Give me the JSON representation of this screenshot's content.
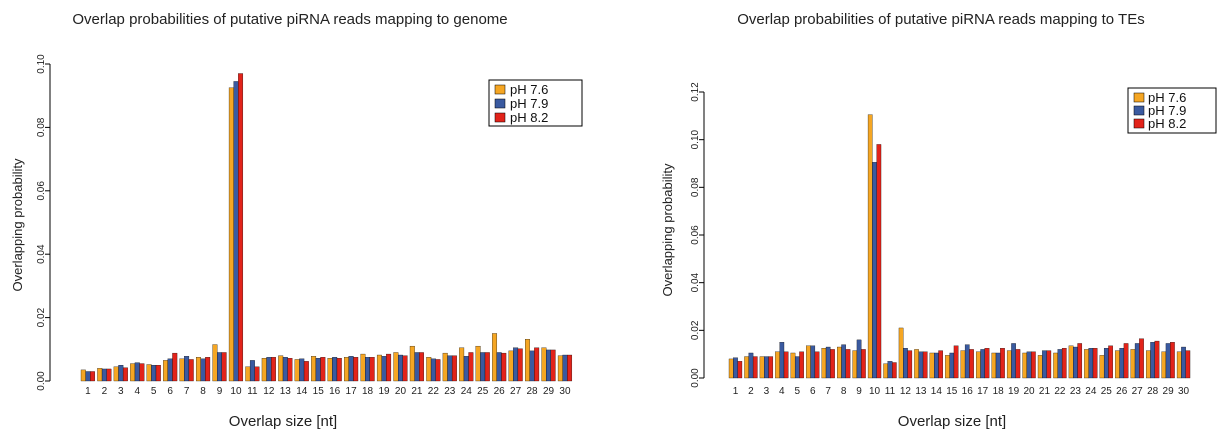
{
  "chart_data": [
    {
      "type": "bar",
      "title": "Overlap probabilities of putative piRNA reads mapping to genome",
      "xlabel": "Overlap size [nt]",
      "ylabel": "Overlapping probability",
      "ylim": [
        0,
        0.1
      ],
      "yticks": [
        "0.00",
        "0.02",
        "0.04",
        "0.06",
        "0.08",
        "0.10"
      ],
      "grid": false,
      "legend_position": "top-right",
      "categories": [
        "1",
        "2",
        "3",
        "4",
        "5",
        "6",
        "7",
        "8",
        "9",
        "10",
        "11",
        "12",
        "13",
        "14",
        "15",
        "16",
        "17",
        "18",
        "19",
        "20",
        "21",
        "22",
        "23",
        "24",
        "25",
        "26",
        "27",
        "28",
        "29",
        "30"
      ],
      "series": [
        {
          "name": "pH 7.6",
          "color": "#f5a623",
          "values": [
            0.0035,
            0.004,
            0.0045,
            0.0055,
            0.0052,
            0.0065,
            0.007,
            0.0075,
            0.0115,
            0.0925,
            0.0045,
            0.0072,
            0.008,
            0.0068,
            0.0078,
            0.0072,
            0.0075,
            0.0085,
            0.0082,
            0.009,
            0.011,
            0.0075,
            0.0088,
            0.0105,
            0.011,
            0.015,
            0.0095,
            0.0132,
            0.0105,
            0.008
          ]
        },
        {
          "name": "pH 7.9",
          "color": "#3a5aa0",
          "values": [
            0.003,
            0.0038,
            0.005,
            0.0058,
            0.005,
            0.007,
            0.0078,
            0.007,
            0.009,
            0.0945,
            0.0065,
            0.0075,
            0.0075,
            0.007,
            0.0072,
            0.0075,
            0.0078,
            0.0075,
            0.0078,
            0.0082,
            0.009,
            0.007,
            0.008,
            0.0078,
            0.009,
            0.009,
            0.0105,
            0.0095,
            0.0098,
            0.0082
          ]
        },
        {
          "name": "pH 8.2",
          "color": "#e2231a",
          "values": [
            0.003,
            0.0038,
            0.0042,
            0.0055,
            0.005,
            0.0088,
            0.0068,
            0.0075,
            0.009,
            0.097,
            0.0045,
            0.0075,
            0.0072,
            0.0062,
            0.0075,
            0.0072,
            0.0075,
            0.0075,
            0.0085,
            0.008,
            0.009,
            0.0068,
            0.008,
            0.009,
            0.009,
            0.0088,
            0.0102,
            0.0105,
            0.0098,
            0.0082
          ]
        }
      ]
    },
    {
      "type": "bar",
      "title": "Overlap probabilities of putative piRNA reads mapping to TEs",
      "xlabel": "Overlap size [nt]",
      "ylabel": "Overlapping probability",
      "ylim": [
        0,
        0.12
      ],
      "yticks": [
        "0.00",
        "0.02",
        "0.04",
        "0.06",
        "0.08",
        "0.10",
        "0.12"
      ],
      "grid": false,
      "legend_position": "top-right",
      "categories": [
        "1",
        "2",
        "3",
        "4",
        "5",
        "6",
        "7",
        "8",
        "9",
        "10",
        "11",
        "12",
        "13",
        "14",
        "15",
        "16",
        "17",
        "18",
        "19",
        "20",
        "21",
        "22",
        "23",
        "24",
        "25",
        "26",
        "27",
        "28",
        "29",
        "30"
      ],
      "series": [
        {
          "name": "pH 7.6",
          "color": "#f5a623",
          "values": [
            0.008,
            0.009,
            0.009,
            0.011,
            0.0105,
            0.0135,
            0.0125,
            0.013,
            0.0115,
            0.1105,
            0.006,
            0.021,
            0.012,
            0.0105,
            0.0095,
            0.0115,
            0.011,
            0.0105,
            0.0115,
            0.0105,
            0.0095,
            0.0105,
            0.0135,
            0.012,
            0.0095,
            0.0115,
            0.012,
            0.0115,
            0.011,
            0.011
          ]
        },
        {
          "name": "pH 7.9",
          "color": "#3a5aa0",
          "values": [
            0.0085,
            0.0105,
            0.009,
            0.015,
            0.009,
            0.0135,
            0.013,
            0.014,
            0.016,
            0.0905,
            0.007,
            0.0125,
            0.011,
            0.0105,
            0.0105,
            0.014,
            0.012,
            0.0105,
            0.0145,
            0.011,
            0.0115,
            0.012,
            0.013,
            0.0125,
            0.0125,
            0.0125,
            0.0145,
            0.015,
            0.0145,
            0.013
          ]
        },
        {
          "name": "pH 8.2",
          "color": "#e2231a",
          "values": [
            0.007,
            0.009,
            0.009,
            0.011,
            0.011,
            0.011,
            0.012,
            0.012,
            0.012,
            0.098,
            0.0065,
            0.0115,
            0.011,
            0.0115,
            0.0135,
            0.012,
            0.0125,
            0.0125,
            0.012,
            0.011,
            0.0115,
            0.0125,
            0.0145,
            0.0125,
            0.0135,
            0.0145,
            0.0165,
            0.0155,
            0.015,
            0.0115
          ]
        }
      ]
    }
  ]
}
